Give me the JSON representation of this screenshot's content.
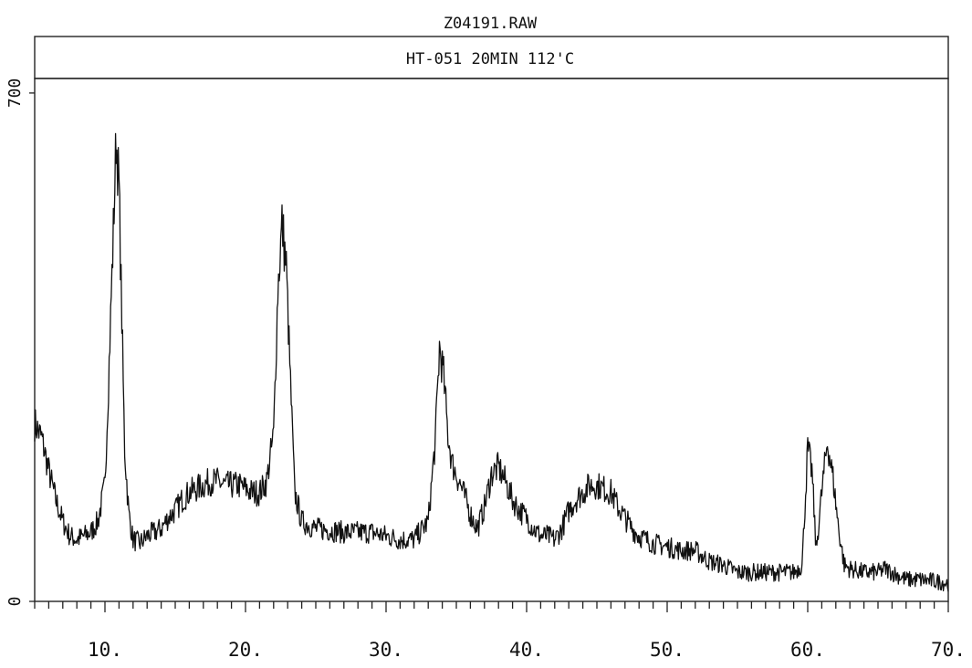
{
  "chart_data": {
    "type": "line",
    "title": "Z04191.RAW",
    "subtitle": "HT-051 20MIN 112'C",
    "xlabel": "",
    "ylabel": "",
    "xlim": [
      5,
      70
    ],
    "ylim": [
      0,
      720
    ],
    "x_tick_labels": [
      "10.",
      "20.",
      "30.",
      "40.",
      "50.",
      "60.",
      "70."
    ],
    "x_tick_values": [
      10,
      20,
      30,
      40,
      50,
      60,
      70
    ],
    "y_tick_labels": [
      "0",
      "700"
    ],
    "y_tick_values": [
      0,
      700
    ],
    "grid": false,
    "legend": "none",
    "series": [
      {
        "color": "#111111",
        "x": [
          5.0,
          5.5,
          6.0,
          6.5,
          7.0,
          7.5,
          8.0,
          8.5,
          9.0,
          9.5,
          10.0,
          10.3,
          10.6,
          10.8,
          11.0,
          11.2,
          11.4,
          11.7,
          12.0,
          12.5,
          13.0,
          13.5,
          14.0,
          14.5,
          15.0,
          15.5,
          16.0,
          16.5,
          17.0,
          17.5,
          18.0,
          18.5,
          19.0,
          19.5,
          20.0,
          20.5,
          21.0,
          21.5,
          22.0,
          22.3,
          22.6,
          22.9,
          23.2,
          23.5,
          24.0,
          24.5,
          25.0,
          26.0,
          27.0,
          28.0,
          29.0,
          30.0,
          31.0,
          32.0,
          33.0,
          33.5,
          33.8,
          34.1,
          34.4,
          34.7,
          35.0,
          35.5,
          36.0,
          36.5,
          37.0,
          37.5,
          38.0,
          38.5,
          39.0,
          39.5,
          40.0,
          40.5,
          41.0,
          41.5,
          42.0,
          42.5,
          43.0,
          43.5,
          44.0,
          44.5,
          45.0,
          45.5,
          46.0,
          46.5,
          47.0,
          47.5,
          48.0,
          49.0,
          50.0,
          51.0,
          52.0,
          53.0,
          54.0,
          55.0,
          56.0,
          57.0,
          58.0,
          59.0,
          59.6,
          60.0,
          60.3,
          60.6,
          61.0,
          61.4,
          61.8,
          62.2,
          62.6,
          63.0,
          64.0,
          65.0,
          65.5,
          66.0,
          67.0,
          68.0,
          69.0,
          70.0
        ],
        "y": [
          245,
          225,
          180,
          140,
          110,
          90,
          85,
          90,
          95,
          110,
          160,
          330,
          510,
          640,
          570,
          390,
          210,
          120,
          85,
          80,
          90,
          95,
          100,
          115,
          125,
          140,
          150,
          155,
          160,
          165,
          165,
          160,
          160,
          160,
          155,
          150,
          150,
          165,
          230,
          430,
          520,
          460,
          300,
          150,
          110,
          105,
          100,
          98,
          95,
          95,
          95,
          90,
          85,
          85,
          110,
          220,
          350,
          310,
          230,
          190,
          175,
          150,
          120,
          100,
          130,
          175,
          185,
          165,
          140,
          125,
          115,
          100,
          90,
          90,
          85,
          100,
          125,
          140,
          150,
          160,
          160,
          155,
          150,
          130,
          115,
          100,
          90,
          80,
          75,
          70,
          70,
          55,
          50,
          40,
          40,
          40,
          40,
          40,
          50,
          210,
          180,
          70,
          150,
          220,
          170,
          100,
          50,
          45,
          40,
          40,
          45,
          40,
          30,
          30,
          28,
          25
        ]
      }
    ]
  }
}
